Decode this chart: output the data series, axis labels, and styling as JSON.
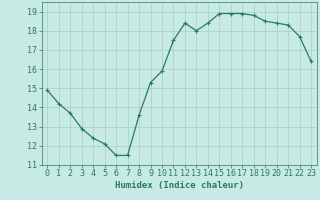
{
  "x": [
    0,
    1,
    2,
    3,
    4,
    5,
    6,
    7,
    8,
    9,
    10,
    11,
    12,
    13,
    14,
    15,
    16,
    17,
    18,
    19,
    20,
    21,
    22,
    23
  ],
  "y": [
    14.9,
    14.2,
    13.7,
    12.9,
    12.4,
    12.1,
    11.5,
    11.5,
    13.6,
    15.3,
    15.9,
    17.5,
    18.4,
    18.0,
    18.4,
    18.9,
    18.9,
    18.9,
    18.8,
    18.5,
    18.4,
    18.3,
    17.7,
    16.4
  ],
  "line_color": "#2a7a62",
  "marker": "+",
  "marker_size": 3,
  "marker_lw": 0.8,
  "bg_color": "#c8eae4",
  "grid_color": "#a8cec8",
  "xlabel": "Humidex (Indice chaleur)",
  "ylabel_ticks": [
    11,
    12,
    13,
    14,
    15,
    16,
    17,
    18,
    19
  ],
  "xlim": [
    -0.5,
    23.5
  ],
  "ylim": [
    11,
    19.5
  ],
  "tick_color": "#2a7a62",
  "label_fontsize": 6.5,
  "tick_fontsize": 6.0,
  "linewidth": 0.9
}
